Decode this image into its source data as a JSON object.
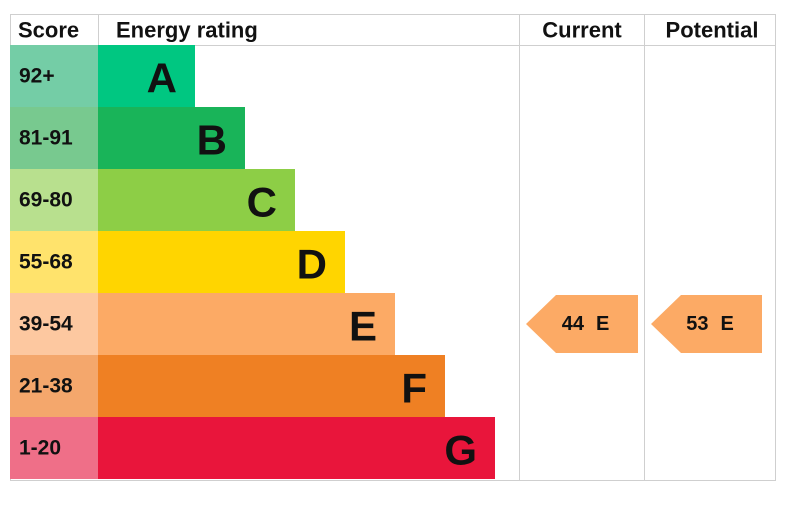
{
  "header": {
    "score": "Score",
    "rating": "Energy rating",
    "current": "Current",
    "potential": "Potential"
  },
  "bands": [
    {
      "score": "92+",
      "letter": "A"
    },
    {
      "score": "81-91",
      "letter": "B"
    },
    {
      "score": "69-80",
      "letter": "C"
    },
    {
      "score": "55-68",
      "letter": "D"
    },
    {
      "score": "39-54",
      "letter": "E"
    },
    {
      "score": "21-38",
      "letter": "F"
    },
    {
      "score": "1-20",
      "letter": "G"
    }
  ],
  "current": {
    "value": 44,
    "letter": "E"
  },
  "potential": {
    "value": 53,
    "letter": "E"
  }
}
